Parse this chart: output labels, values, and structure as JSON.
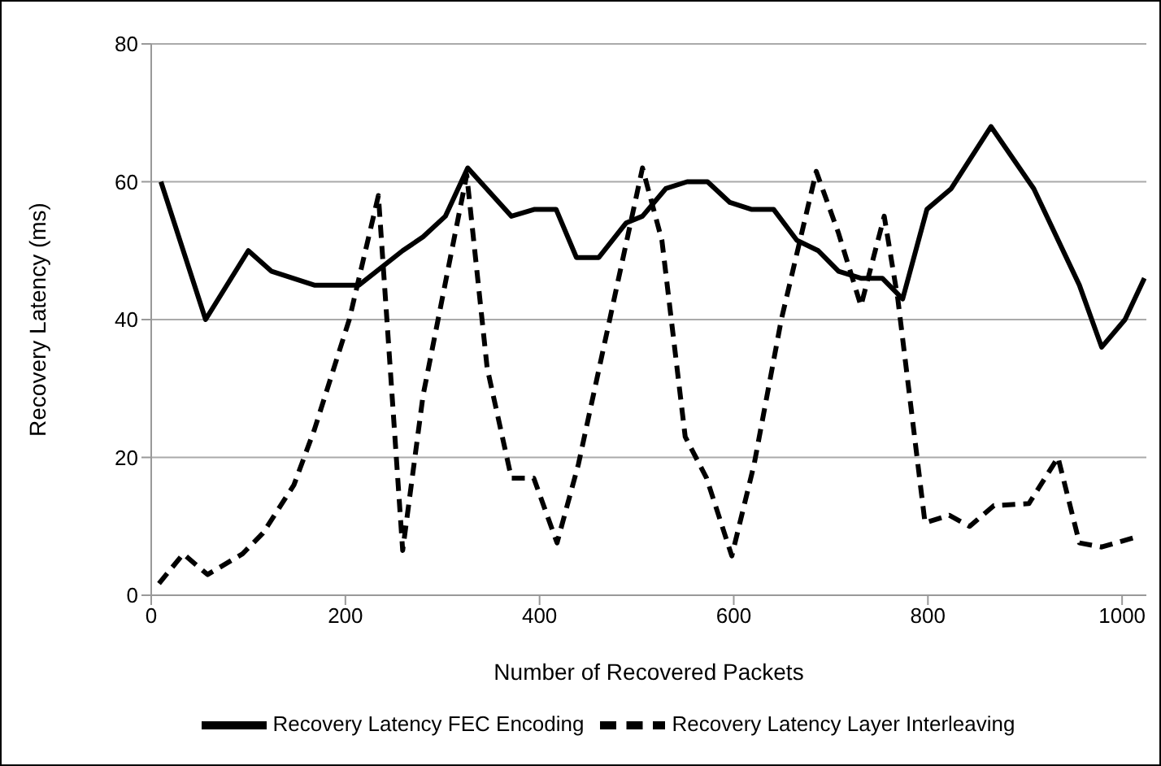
{
  "chart_data": {
    "type": "line",
    "xlabel": "Number of Recovered Packets",
    "ylabel": "Recovery Latency (ms)",
    "xlim": [
      0,
      1025
    ],
    "xticks": [
      0,
      200,
      400,
      600,
      800,
      1000
    ],
    "ylim": [
      0,
      80
    ],
    "yticks": [
      0,
      20,
      40,
      60,
      80
    ],
    "grid": "y",
    "legend": "bottom",
    "marker": "none",
    "series": [
      {
        "name": "Recovery Latency FEC Encoding",
        "color": "#000000",
        "line_style": "solid",
        "x": [
          10,
          56,
          100,
          124,
          168,
          214,
          259,
          280,
          303,
          326,
          371,
          395,
          417,
          438,
          461,
          489,
          506,
          530,
          552,
          573,
          596,
          618,
          641,
          665,
          687,
          708,
          731,
          753,
          774,
          799,
          824,
          865,
          909,
          956,
          979,
          1003,
          1023
        ],
        "values": [
          60,
          40,
          50,
          47,
          45,
          45,
          50,
          52,
          55,
          62,
          55,
          56,
          56,
          49,
          49,
          54,
          55,
          59,
          60,
          60,
          57,
          56,
          56,
          51.5,
          50,
          47,
          46,
          46,
          43,
          56,
          59,
          68,
          59,
          45,
          36,
          40,
          46
        ]
      },
      {
        "name": "Recovery Latency Layer Interleaving",
        "color": "#000000",
        "line_style": "dashed",
        "x": [
          8,
          33,
          58,
          94,
          115,
          147,
          168,
          204,
          234,
          259,
          280,
          325,
          346,
          371,
          394,
          418,
          440,
          506,
          526,
          550,
          572,
          598,
          621,
          649,
          685,
          708,
          731,
          755,
          769,
          797,
          822,
          843,
          868,
          904,
          934,
          956,
          979,
          1016
        ],
        "values": [
          1.7,
          6,
          3,
          6,
          9,
          16,
          24,
          40,
          58,
          6.5,
          29,
          61,
          33,
          17,
          17,
          7.6,
          19,
          62,
          51.5,
          23,
          17,
          5.7,
          19,
          40,
          61.5,
          52.5,
          42,
          55,
          43,
          10.5,
          11.6,
          10,
          13,
          13.3,
          20,
          7.6,
          7,
          8.5
        ]
      }
    ]
  }
}
